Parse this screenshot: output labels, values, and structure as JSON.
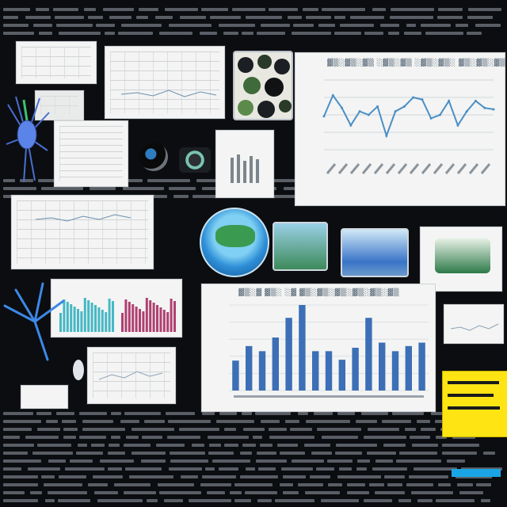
{
  "collage": {
    "note_lines": [],
    "colors": {
      "background": "#0b0d10",
      "panel": "#f3f4f3",
      "line_chart": "#4b8fc6",
      "bar_chart": "#3c6fb6",
      "teal_bars": "#46b8c4",
      "magenta_bars": "#b04070",
      "sticky_note": "#ffe414",
      "cyan_accent": "#1aa6e6"
    },
    "icons": [
      "neuron-illustration",
      "camera-lens-icon",
      "globe-photo",
      "landscape-photo",
      "dots-pattern"
    ]
  },
  "chart_data": [
    {
      "type": "line",
      "title": "",
      "xlabel": "",
      "ylabel": "",
      "x": [
        1,
        2,
        3,
        4,
        5,
        6,
        7,
        8,
        9,
        10,
        11,
        12,
        13,
        14,
        15,
        16,
        17,
        18,
        19,
        20
      ],
      "values": [
        0.48,
        0.78,
        0.6,
        0.35,
        0.55,
        0.5,
        0.62,
        0.2,
        0.55,
        0.62,
        0.75,
        0.72,
        0.45,
        0.5,
        0.7,
        0.35,
        0.55,
        0.7,
        0.6,
        0.58
      ]
    },
    {
      "type": "bar",
      "title": "",
      "xlabel": "",
      "ylabel": "",
      "values": [
        35,
        52,
        46,
        62,
        85,
        100,
        46,
        46,
        36,
        50,
        85,
        56,
        46,
        52,
        56
      ]
    }
  ]
}
